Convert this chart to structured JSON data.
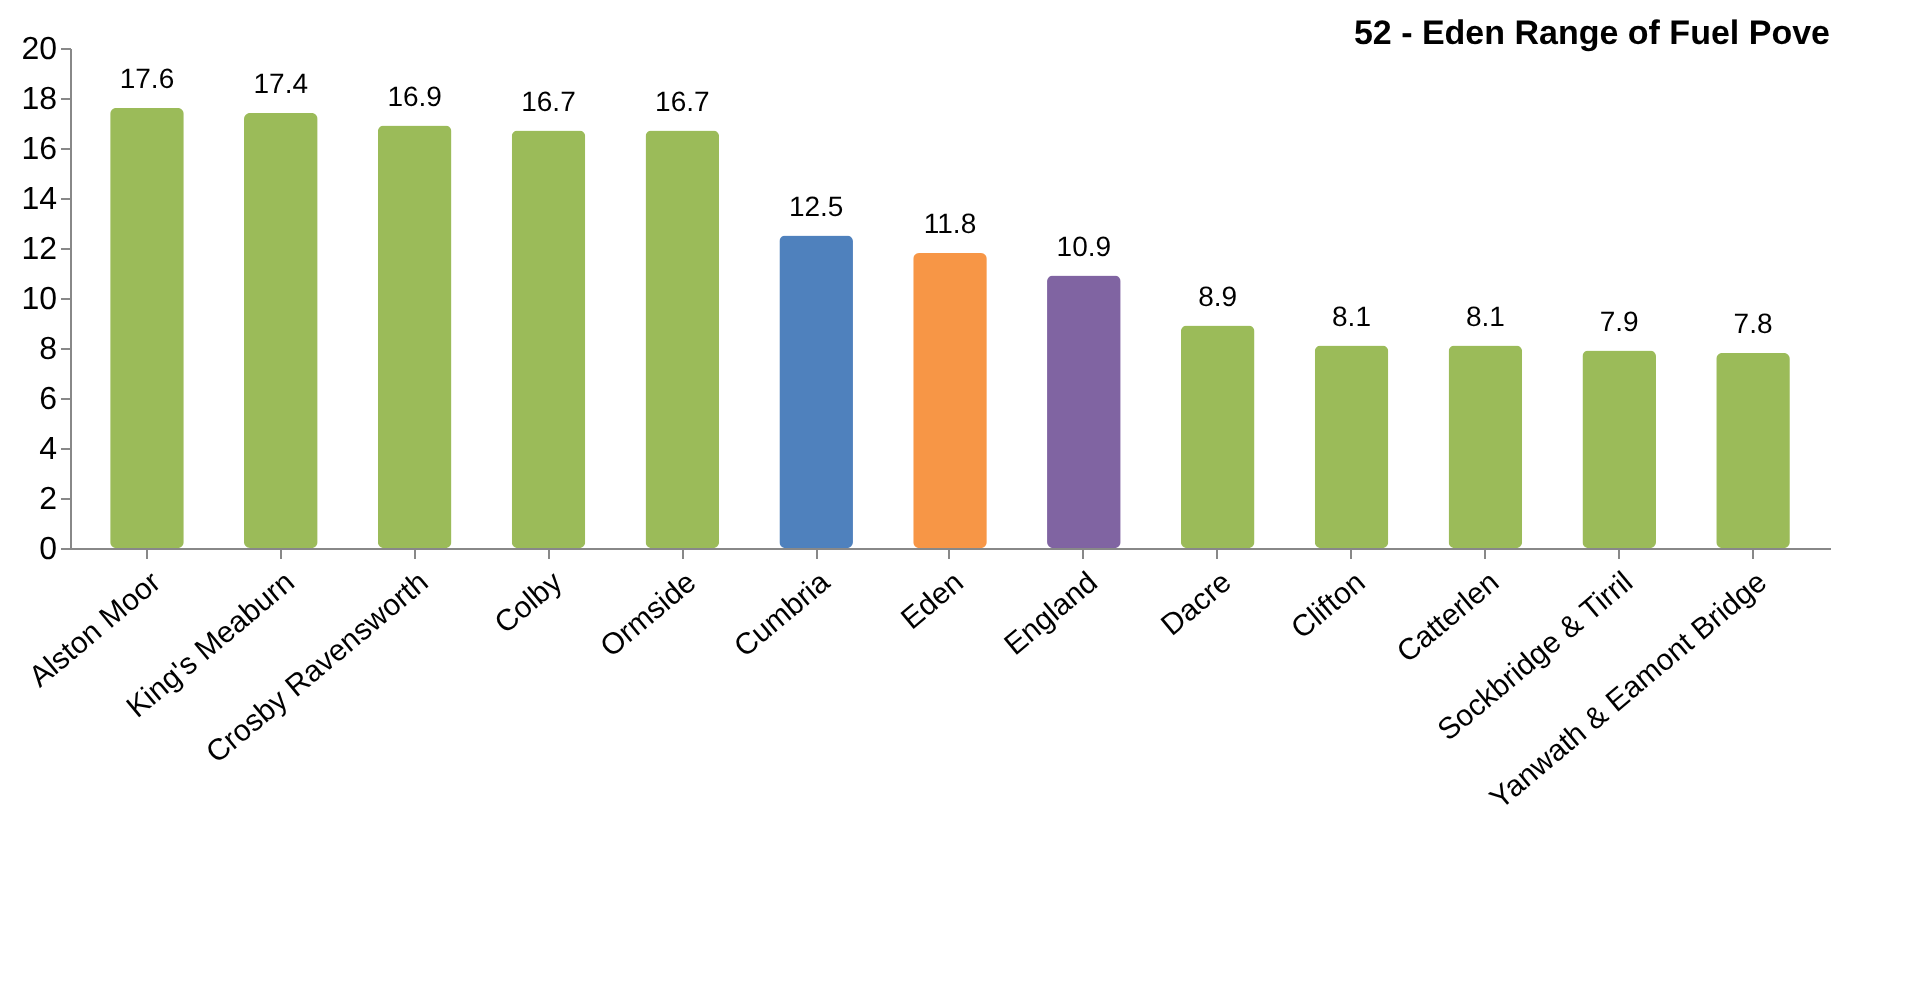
{
  "chart_data": {
    "type": "bar",
    "title": "52 - Eden Range of Fuel Pove",
    "categories": [
      "Alston Moor",
      "King's Meaburn",
      "Crosby Ravensworth",
      "Colby",
      "Ormside",
      "Cumbria",
      "Eden",
      "England",
      "Dacre",
      "Clifton",
      "Catterlen",
      "Sockbridge & Tirril",
      "Yanwath & Eamont Bridge"
    ],
    "values": [
      17.6,
      17.4,
      16.9,
      16.7,
      16.7,
      12.5,
      11.8,
      10.9,
      8.9,
      8.1,
      8.1,
      7.9,
      7.8
    ],
    "colors": [
      "#9bbb59",
      "#9bbb59",
      "#9bbb59",
      "#9bbb59",
      "#9bbb59",
      "#4f81bd",
      "#f79646",
      "#8064a2",
      "#9bbb59",
      "#9bbb59",
      "#9bbb59",
      "#9bbb59",
      "#9bbb59"
    ],
    "ylim": [
      0,
      20
    ],
    "yticks": [
      0,
      2,
      4,
      6,
      8,
      10,
      12,
      14,
      16,
      18,
      20
    ],
    "data_labels": true,
    "grid": false,
    "legend": false
  }
}
